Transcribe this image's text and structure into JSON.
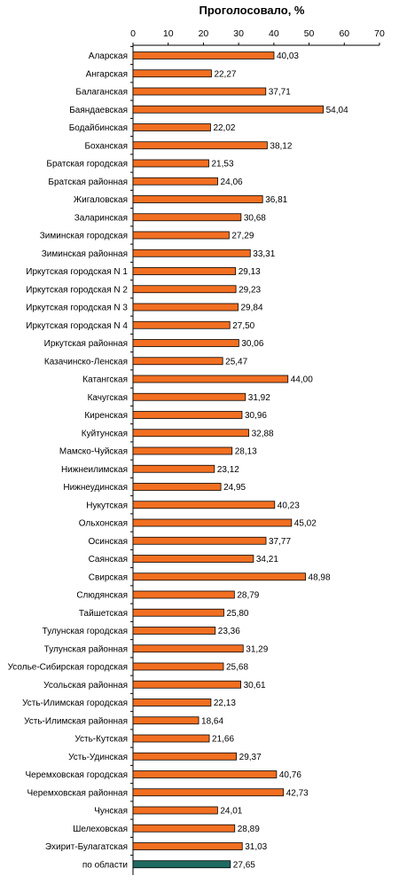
{
  "chart_data": {
    "type": "bar",
    "orientation": "horizontal",
    "title": "Проголосовало, %",
    "xlim": [
      0,
      70
    ],
    "xticks": [
      0,
      10,
      20,
      30,
      40,
      50,
      60,
      70
    ],
    "axis_position": "top",
    "grid": false,
    "legend": "none",
    "colors": {
      "bar": "#f26f21",
      "highlight": "#1f6b61",
      "outline": "#000000"
    },
    "categories": [
      "Аларская",
      "Ангарская",
      "Балаганская",
      "Баяндаевская",
      "Бодайбинская",
      "Боханская",
      "Братская городская",
      "Братская районная",
      "Жигаловская",
      "Заларинская",
      "Зиминская городская",
      "Зиминская районная",
      "Иркутская городская N 1",
      "Иркутская городская N 2",
      "Иркутская городская N 3",
      "Иркутская городская N 4",
      "Иркутская районная",
      "Казачинско-Ленская",
      "Катангская",
      "Качугская",
      "Киренская",
      "Куйтунская",
      "Мамско-Чуйская",
      "Нижнеилимская",
      "Нижнеудинская",
      "Нукутская",
      "Ольхонская",
      "Осинская",
      "Саянская",
      "Свирская",
      "Слюдянская",
      "Тайшетская",
      "Тулунская городская",
      "Тулунская районная",
      "Усолье-Сибирская городская",
      "Усольская районная",
      "Усть-Илимская городская",
      "Усть-Илимская районная",
      "Усть-Кутская",
      "Усть-Удинская",
      "Черемховская городская",
      "Черемховская районная",
      "Чунская",
      "Шелеховская",
      "Эхирит-Булагатская",
      "по области"
    ],
    "values": [
      40.03,
      22.27,
      37.71,
      54.04,
      22.02,
      38.12,
      21.53,
      24.06,
      36.81,
      30.68,
      27.29,
      33.31,
      29.13,
      29.23,
      29.84,
      27.5,
      30.06,
      25.47,
      44.0,
      31.92,
      30.96,
      32.88,
      28.13,
      23.12,
      24.95,
      40.23,
      45.02,
      37.77,
      34.21,
      48.98,
      28.79,
      25.8,
      23.36,
      31.29,
      25.68,
      30.61,
      22.13,
      18.64,
      21.66,
      29.37,
      40.76,
      42.73,
      24.01,
      28.89,
      31.03,
      27.65
    ],
    "value_labels": [
      "40,03",
      "22,27",
      "37,71",
      "54,04",
      "22,02",
      "38,12",
      "21,53",
      "24,06",
      "36,81",
      "30,68",
      "27,29",
      "33,31",
      "29,13",
      "29,23",
      "29,84",
      "27,50",
      "30,06",
      "25,47",
      "44,00",
      "31,92",
      "30,96",
      "32,88",
      "28,13",
      "23,12",
      "24,95",
      "40,23",
      "45,02",
      "37,77",
      "34,21",
      "48,98",
      "28,79",
      "25,80",
      "23,36",
      "31,29",
      "25,68",
      "30,61",
      "22,13",
      "18,64",
      "21,66",
      "29,37",
      "40,76",
      "42,73",
      "24,01",
      "28,89",
      "31,03",
      "27,65"
    ],
    "highlight_index": 45
  }
}
